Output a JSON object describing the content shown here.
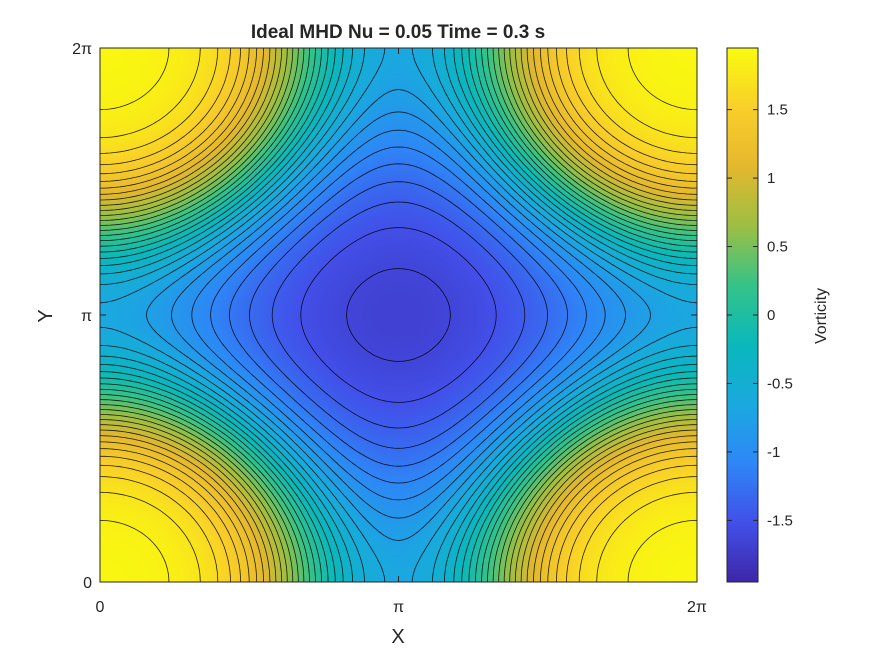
{
  "chart_data": {
    "type": "heatmap",
    "subtype": "filled-contour",
    "title": "Ideal MHD Nu = 0.05 Time = 0.3 s",
    "xlabel": "X",
    "ylabel": "Y",
    "xlim": [
      0,
      6.2832
    ],
    "ylim": [
      0,
      6.2832
    ],
    "x_ticks": [
      {
        "value": 0,
        "label": "0"
      },
      {
        "value": 3.1416,
        "label": "π"
      },
      {
        "value": 6.2832,
        "label": "2π"
      }
    ],
    "y_ticks": [
      {
        "value": 0,
        "label": "0"
      },
      {
        "value": 3.1416,
        "label": "π"
      },
      {
        "value": 6.2832,
        "label": "2π"
      }
    ],
    "colorbar": {
      "label": "Vorticity",
      "clim": [
        -1.95,
        1.95
      ],
      "ticks": [
        -1.5,
        -1,
        -0.5,
        0,
        0.5,
        1,
        1.5
      ],
      "tick_labels": [
        "-1.5",
        "-1",
        "-0.5",
        "0",
        "0.5",
        "1",
        "1.5"
      ],
      "colormap": "parula",
      "colormap_stops": [
        "#3e26a8",
        "#4250e9",
        "#2e87f7",
        "#1aa9df",
        "#0ab8bb",
        "#35c388",
        "#9cbf43",
        "#e4b82e",
        "#f9cf2a",
        "#f9fb0e"
      ]
    },
    "field": {
      "description_of_shape": "minimum near center, maxima at the four corners",
      "min_value": -1.95,
      "min_location": [
        3.1416,
        3.1416
      ],
      "max_value": 1.95,
      "max_locations": [
        [
          0.4,
          0.3
        ],
        [
          5.9,
          0.3
        ],
        [
          0.4,
          6.0
        ],
        [
          5.9,
          6.0
        ]
      ]
    },
    "contour_levels": 36,
    "grid": false
  }
}
